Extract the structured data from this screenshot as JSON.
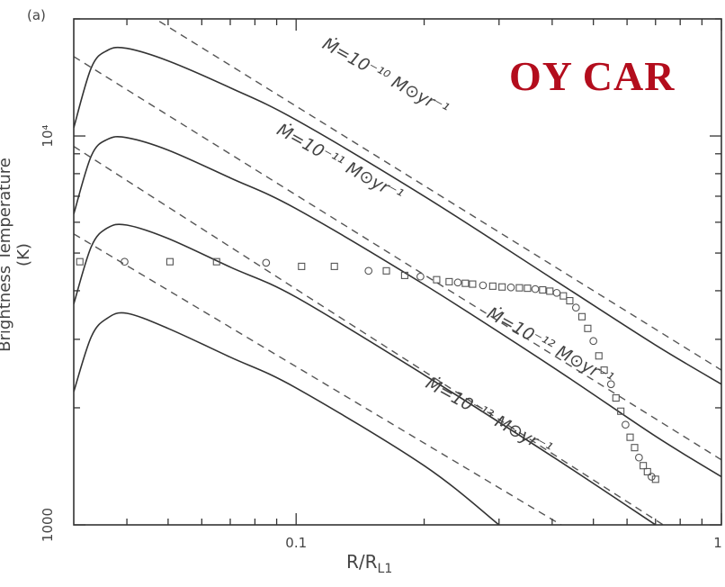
{
  "panel_label": "(a)",
  "title": "OY CAR",
  "chart_data": {
    "type": "line",
    "xlabel": "R/R",
    "xlabel_sub": "L1",
    "ylabel": "Brightness Temperature (K)",
    "xscale": "log",
    "yscale": "log",
    "xlim": [
      0.03,
      1.0
    ],
    "ylim": [
      1000,
      20000
    ],
    "x_ticks": [
      {
        "value": 0.1,
        "label": "0.1"
      },
      {
        "value": 1.0,
        "label": "1"
      }
    ],
    "y_ticks": [
      {
        "value": 1000,
        "label": "1000"
      },
      {
        "value": 10000,
        "label": "10⁴"
      }
    ],
    "model_curves": [
      {
        "label": "Ṁ=10⁻¹⁰ M⊙yr⁻¹",
        "mdot_exp": -10,
        "x": [
          0.03,
          0.033,
          0.036,
          0.04,
          0.05,
          0.07,
          0.1,
          0.2,
          0.4,
          0.7,
          1.0
        ],
        "y": [
          10500,
          15000,
          16600,
          16800,
          15600,
          13300,
          11000,
          7000,
          4300,
          2900,
          2300
        ]
      },
      {
        "label": "Ṁ=10⁻¹¹ M⊙yr⁻¹",
        "mdot_exp": -11,
        "x": [
          0.03,
          0.033,
          0.036,
          0.04,
          0.05,
          0.07,
          0.1,
          0.2,
          0.4,
          0.7,
          1.0
        ],
        "y": [
          6300,
          8900,
          9800,
          9900,
          9200,
          7800,
          6500,
          4150,
          2550,
          1690,
          1330
        ]
      },
      {
        "label": "Ṁ=10⁻¹² M⊙yr⁻¹",
        "mdot_exp": -12,
        "x": [
          0.03,
          0.033,
          0.036,
          0.04,
          0.05,
          0.07,
          0.1,
          0.2,
          0.4,
          0.7
        ],
        "y": [
          3700,
          5200,
          5800,
          5900,
          5450,
          4600,
          3850,
          2430,
          1500,
          1000
        ]
      },
      {
        "label": "Ṁ=10⁻¹³ M⊙yr⁻¹",
        "mdot_exp": -13,
        "x": [
          0.03,
          0.033,
          0.036,
          0.04,
          0.05,
          0.07,
          0.1,
          0.2,
          0.3
        ],
        "y": [
          2200,
          3050,
          3400,
          3500,
          3200,
          2700,
          2250,
          1420,
          1000
        ]
      }
    ],
    "asymptotes": [
      {
        "x": [
          0.03,
          1.0
        ],
        "y": [
          27000,
          2500
        ]
      },
      {
        "x": [
          0.03,
          1.0
        ],
        "y": [
          16000,
          1470
        ]
      },
      {
        "x": [
          0.03,
          0.73
        ],
        "y": [
          9400,
          1000
        ]
      },
      {
        "x": [
          0.03,
          0.42
        ],
        "y": [
          5600,
          1000
        ]
      }
    ],
    "observed_points": {
      "name": "OY Car",
      "x": [
        0.031,
        0.0395,
        0.0505,
        0.065,
        0.085,
        0.103,
        0.123,
        0.148,
        0.163,
        0.18,
        0.196,
        0.214,
        0.229,
        0.24,
        0.25,
        0.26,
        0.275,
        0.29,
        0.305,
        0.32,
        0.335,
        0.35,
        0.365,
        0.38,
        0.395,
        0.41,
        0.425,
        0.44,
        0.455,
        0.47,
        0.485,
        0.5,
        0.515,
        0.53,
        0.55,
        0.565,
        0.58,
        0.595,
        0.61,
        0.625,
        0.64,
        0.655,
        0.67,
        0.685,
        0.7
      ],
      "y": [
        4750,
        4750,
        4750,
        4750,
        4720,
        4620,
        4620,
        4500,
        4500,
        4380,
        4350,
        4270,
        4220,
        4200,
        4180,
        4160,
        4130,
        4110,
        4090,
        4080,
        4070,
        4060,
        4040,
        4020,
        3990,
        3950,
        3880,
        3770,
        3620,
        3430,
        3200,
        2970,
        2720,
        2500,
        2300,
        2120,
        1960,
        1810,
        1680,
        1580,
        1490,
        1420,
        1370,
        1330,
        1310
      ]
    }
  }
}
